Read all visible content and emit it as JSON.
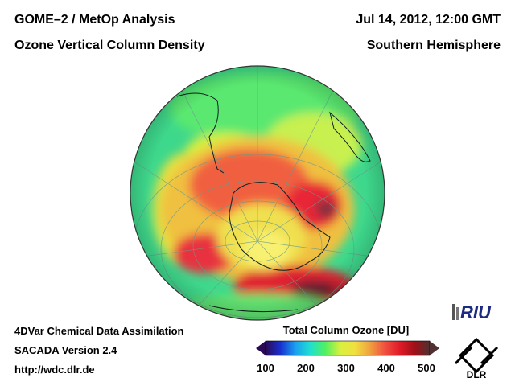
{
  "header": {
    "title_line1": "GOME–2 / MetOp Analysis",
    "title_line2": "Ozone Vertical Column Density",
    "date": "Jul 14, 2012, 12:00 GMT",
    "region": "Southern Hemisphere"
  },
  "footer": {
    "line1": "4DVar Chemical Data Assimilation",
    "line2": "SACADA Version 2.4",
    "line3": "http://wdc.dlr.de"
  },
  "colorbar": {
    "title": "Total Column Ozone [DU]",
    "ticks": [
      "100",
      "200",
      "300",
      "400",
      "500"
    ],
    "colors": [
      "#2a0a55",
      "#1a2fd0",
      "#1aa0f0",
      "#20e0d0",
      "#50f060",
      "#d8f040",
      "#f0e040",
      "#f0a040",
      "#f05040",
      "#e01a28",
      "#a01018",
      "#503030"
    ]
  },
  "map": {
    "projection": "orthographic south pole view",
    "background_color": "#40d890"
  },
  "logos": {
    "riu": "RIU",
    "dlr": "DLR"
  }
}
